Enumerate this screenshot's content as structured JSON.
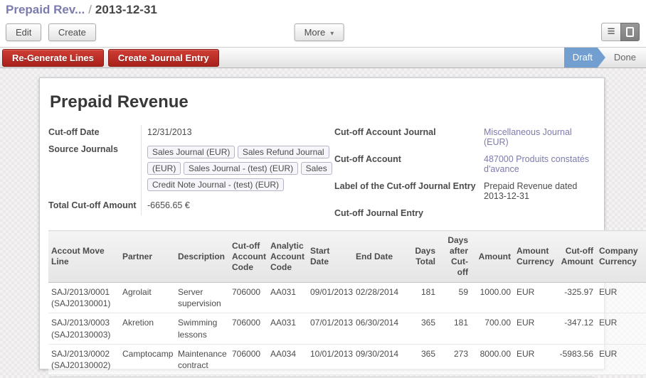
{
  "colors": {
    "accent_link": "#7c7bad",
    "danger_button": "#b02b21",
    "status_active": "#729fcf"
  },
  "icons": {
    "list_view": "≡",
    "caret_down": "▾"
  },
  "breadcrumb": {
    "parent": "Prepaid Rev...",
    "separator": "/",
    "current": "2013-12-31"
  },
  "toolbar": {
    "edit_label": "Edit",
    "create_label": "Create",
    "more_label": "More"
  },
  "action_bar": {
    "regenerate_label": "Re-Generate Lines",
    "create_journal_label": "Create Journal Entry",
    "status_draft": "Draft",
    "status_done": "Done"
  },
  "form": {
    "title": "Prepaid Revenue",
    "cutoff_date_label": "Cut-off Date",
    "cutoff_date_value": "12/31/2013",
    "source_journals_label": "Source Journals",
    "source_journals_tags": [
      "Sales Journal (EUR)",
      "Sales Refund Journal (EUR)",
      "Sales Journal - (test) (EUR)",
      "Sales Credit Note Journal - (test) (EUR)"
    ],
    "total_cutoff_label": "Total Cut-off Amount",
    "total_cutoff_value": "-6656.65 €",
    "cutoff_account_journal_label": "Cut-off Account Journal",
    "cutoff_account_journal_value": "Miscellaneous Journal (EUR)",
    "cutoff_account_label": "Cut-off Account",
    "cutoff_account_value": "487000 Produits constatés d'avance",
    "journal_entry_label_label": "Label of the Cut-off Journal Entry",
    "journal_entry_label_value": "Prepaid Revenue dated 2013-12-31",
    "cutoff_journal_entry_label": "Cut-off Journal Entry",
    "cutoff_journal_entry_value": ""
  },
  "table": {
    "headers": [
      "Accout Move Line",
      "Partner",
      "Description",
      "Cut-off Account Code",
      "Analytic Account Code",
      "Start Date",
      "End Date",
      "Days Total",
      "Days after Cut-off",
      "Amount",
      "Amount Currency",
      "Cut-off Amount",
      "Company Currency"
    ],
    "rows": [
      [
        "SAJ/2013/0001 (SAJ20130001)",
        "Agrolait",
        "Server supervision",
        "706000",
        "AA031",
        "09/01/2013",
        "02/28/2014",
        "181",
        "59",
        "1000.00",
        "EUR",
        "-325.97",
        "EUR"
      ],
      [
        "SAJ/2013/0003 (SAJ20130003)",
        "Akretion",
        "Swimming lessons",
        "706000",
        "AA031",
        "07/01/2013",
        "06/30/2014",
        "365",
        "181",
        "700.00",
        "EUR",
        "-347.12",
        "EUR"
      ],
      [
        "SAJ/2013/0002 (SAJ20130002)",
        "Camptocamp",
        "Maintenance contract",
        "706000",
        "AA034",
        "10/01/2013",
        "09/30/2014",
        "365",
        "273",
        "8000.00",
        "EUR",
        "-5983.56",
        "EUR"
      ]
    ]
  }
}
